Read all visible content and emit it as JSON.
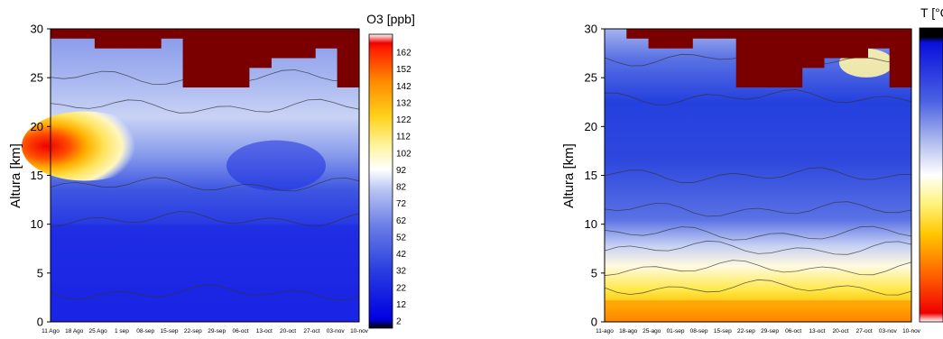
{
  "chart_data": [
    {
      "type": "heatmap",
      "ylabel": "Altura [km]",
      "ylim": [
        0,
        30
      ],
      "yticks": [
        "0",
        "5",
        "10",
        "15",
        "20",
        "25",
        "30"
      ],
      "x_tick_labels": [
        "11 Ago",
        "18 Ago",
        "25 Ago",
        "1 sep",
        "08-sep",
        "15-sep",
        "22-sep",
        "29-sep",
        "06-oct",
        "13-oct",
        "20-oct",
        "27-oct",
        "03-nov",
        "10-nov"
      ],
      "colorbar": {
        "title": "O3 [ppb]",
        "ticks": [
          "162",
          "152",
          "142",
          "132",
          "122",
          "112",
          "102",
          "92",
          "82",
          "72",
          "62",
          "52",
          "42",
          "32",
          "22",
          "12",
          "2"
        ]
      },
      "no_data_color": "#7a0000",
      "grid": false,
      "profile_max_km": [
        29,
        29,
        28,
        28,
        28,
        29,
        24,
        24,
        24,
        26,
        27,
        27,
        28,
        24
      ],
      "features": {
        "ozone_max_region_km": [
          15,
          21
        ],
        "ozone_max_value_ppb": 162
      }
    },
    {
      "type": "heatmap",
      "ylabel": "Altura [km]",
      "ylim": [
        0,
        30
      ],
      "yticks": [
        "0",
        "5",
        "10",
        "15",
        "20",
        "25",
        "30"
      ],
      "x_tick_labels": [
        "11-ago",
        "18-ago",
        "25-ago",
        "01-sep",
        "08-sep",
        "15-sep",
        "22-sep",
        "29-sep",
        "06-oct",
        "13-oct",
        "20-oct",
        "27-oct",
        "03-nov",
        "10-nov"
      ],
      "colorbar": {
        "title": "T [°C"
      },
      "no_data_color": "#7a0000",
      "grid": false,
      "profile_max_km": [
        30,
        29,
        28,
        28,
        29,
        29,
        24,
        24,
        24,
        26,
        27,
        27,
        28,
        24
      ]
    }
  ],
  "colors": {
    "o3_scale": [
      "#0000ee",
      "#3a4de0",
      "#8a9de8",
      "#ffffff",
      "#ffeb6a",
      "#ffb000",
      "#ff5a00",
      "#ee0000"
    ],
    "t_scale": [
      "#ee0000",
      "#ff7a00",
      "#ffe200",
      "#ffffff",
      "#7d93ea",
      "#2a42de",
      "#0000dd"
    ]
  }
}
